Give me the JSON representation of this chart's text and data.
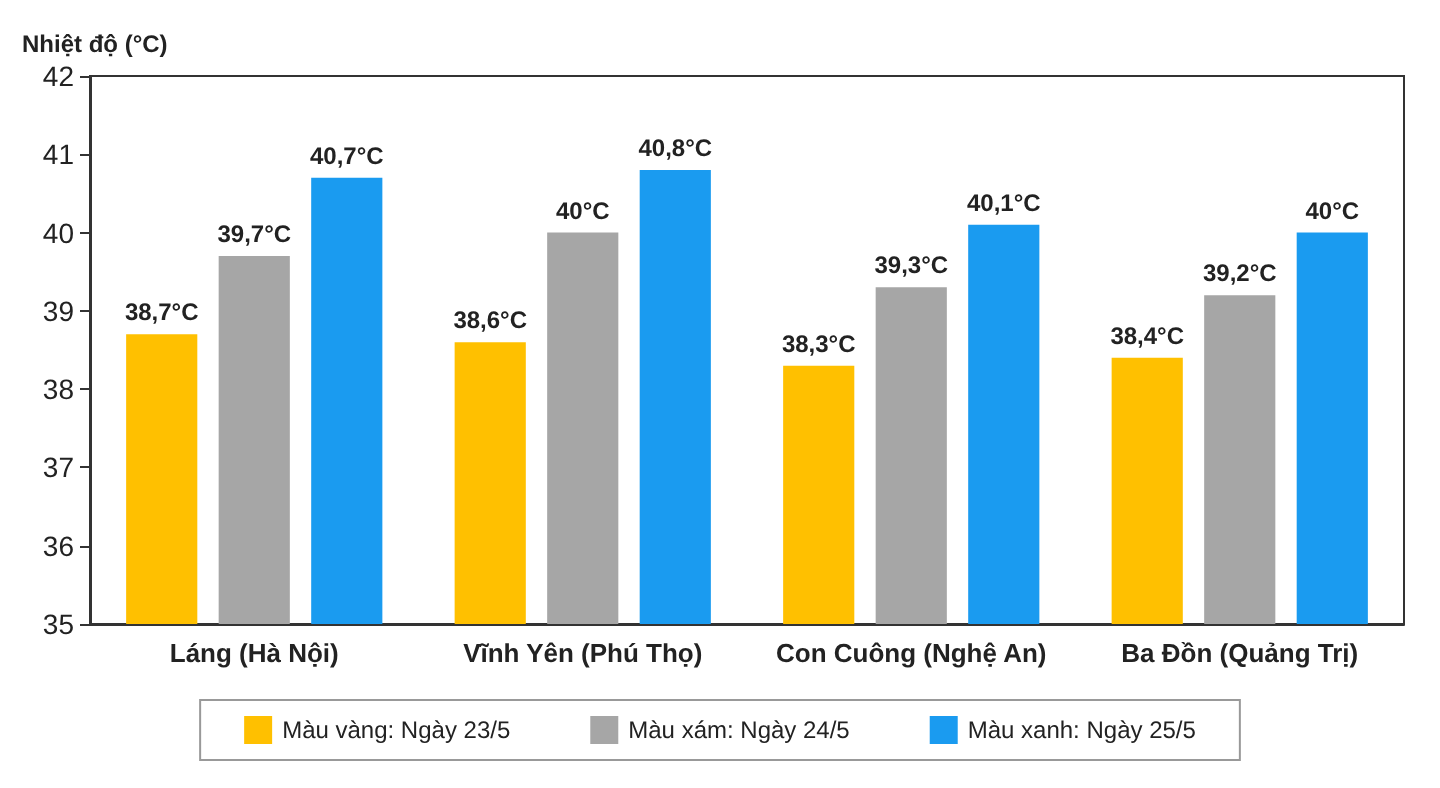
{
  "chart_data": {
    "type": "bar",
    "ylabel": "Nhiệt độ (°C)",
    "categories": [
      "Láng (Hà Nội)",
      "Vĩnh Yên (Phú Thọ)",
      "Con Cuông (Nghệ An)",
      "Ba Đồn (Quảng Trị)"
    ],
    "series": [
      {
        "name": "Màu vàng: Ngày 23/5",
        "color": "#ffc000",
        "values": [
          38.7,
          38.6,
          38.3,
          38.4
        ],
        "value_labels": [
          "38,7°C",
          "38,6°C",
          "38,3°C",
          "38,4°C"
        ]
      },
      {
        "name": "Màu xám: Ngày 24/5",
        "color": "#a6a6a6",
        "values": [
          39.7,
          40,
          39.3,
          39.2
        ],
        "value_labels": [
          "39,7°C",
          "40°C",
          "39,3°C",
          "39,2°C"
        ]
      },
      {
        "name": "Màu xanh: Ngày 25/5",
        "color": "#1a9bf0",
        "values": [
          40.7,
          40.8,
          40.1,
          40
        ],
        "value_labels": [
          "40,7°C",
          "40,8°C",
          "40,1°C",
          "40°C"
        ]
      }
    ],
    "ylim": [
      35,
      42
    ],
    "yticks": [
      35,
      36,
      37,
      38,
      39,
      40,
      41,
      42
    ],
    "legend": "bottom"
  }
}
